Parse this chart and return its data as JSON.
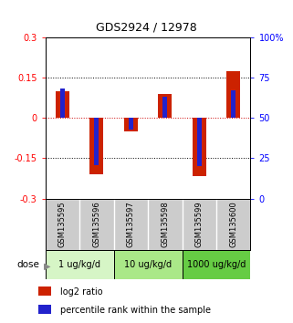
{
  "title": "GDS2924 / 12978",
  "samples": [
    "GSM135595",
    "GSM135596",
    "GSM135597",
    "GSM135598",
    "GSM135599",
    "GSM135600"
  ],
  "log2_ratio": [
    0.1,
    -0.21,
    -0.05,
    0.09,
    -0.215,
    0.175
  ],
  "percentile_rank": [
    0.68,
    0.21,
    0.43,
    0.63,
    0.2,
    0.67
  ],
  "dose_groups": [
    {
      "label": "1 ug/kg/d",
      "samples": [
        0,
        1
      ],
      "color": "#d6f5c6"
    },
    {
      "label": "10 ug/kg/d",
      "samples": [
        2,
        3
      ],
      "color": "#aae888"
    },
    {
      "label": "1000 ug/kg/d",
      "samples": [
        4,
        5
      ],
      "color": "#66cc44"
    }
  ],
  "ylim": [
    -0.3,
    0.3
  ],
  "yticks_left": [
    -0.3,
    -0.15,
    0.0,
    0.15,
    0.3
  ],
  "yticks_right_labels": [
    "0",
    "25",
    "50",
    "75",
    "100%"
  ],
  "bar_width": 0.4,
  "blue_bar_width": 0.13,
  "red_color": "#cc2200",
  "blue_color": "#2222cc",
  "zero_line_color": "#cc0000",
  "bg_color": "#ffffff",
  "plot_bg": "#ffffff",
  "sample_bg": "#cccccc",
  "legend_red_label": "log2 ratio",
  "legend_blue_label": "percentile rank within the sample",
  "dose_label": "dose"
}
